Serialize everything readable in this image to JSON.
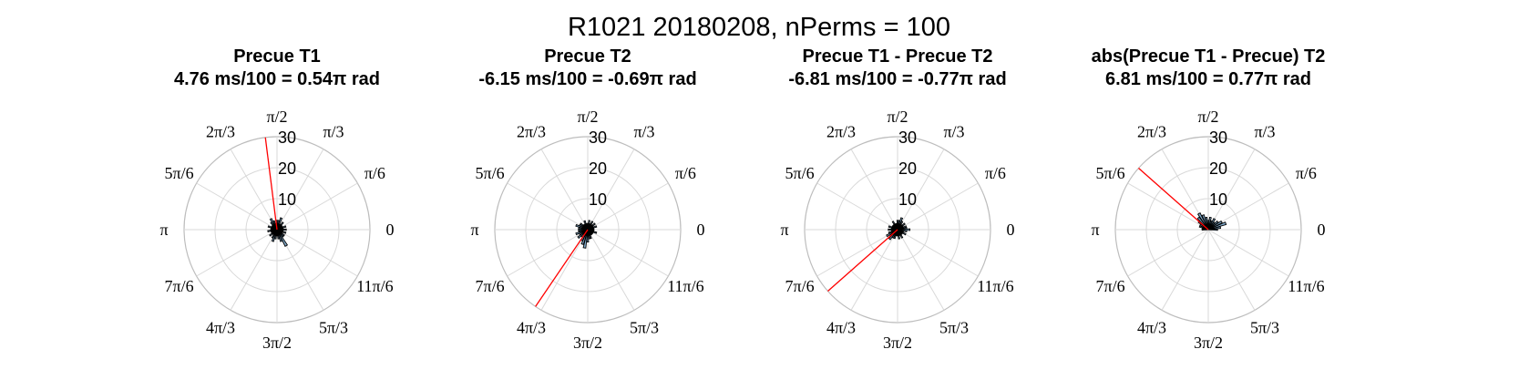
{
  "figure_title": "R1021 20180208, nPerms = 100",
  "chart_data": [
    {
      "type": "polar-histogram",
      "title": "Precue T1",
      "subtitle": "4.76 ms/100 = 0.54π rad",
      "rlim": [
        0,
        30
      ],
      "rticks": [
        "10",
        "20",
        "30"
      ],
      "theta_ticks": [
        "0",
        "π/6",
        "π/3",
        "π/2",
        "2π/3",
        "5π/6",
        "π",
        "7π/6",
        "4π/3",
        "3π/2",
        "5π/3",
        "11π/6"
      ],
      "grid": true,
      "mean_vector": {
        "angle_pi": 0.54,
        "radius": 30
      },
      "bars": [
        {
          "angle_deg": 0,
          "value": 3
        },
        {
          "angle_deg": 10,
          "value": 2
        },
        {
          "angle_deg": 20,
          "value": 3
        },
        {
          "angle_deg": 30,
          "value": 2
        },
        {
          "angle_deg": 40,
          "value": 2
        },
        {
          "angle_deg": 50,
          "value": 3
        },
        {
          "angle_deg": 60,
          "value": 2
        },
        {
          "angle_deg": 70,
          "value": 4
        },
        {
          "angle_deg": 80,
          "value": 3
        },
        {
          "angle_deg": 90,
          "value": 3
        },
        {
          "angle_deg": 100,
          "value": 2
        },
        {
          "angle_deg": 110,
          "value": 3
        },
        {
          "angle_deg": 120,
          "value": 4
        },
        {
          "angle_deg": 130,
          "value": 3
        },
        {
          "angle_deg": 140,
          "value": 2
        },
        {
          "angle_deg": 150,
          "value": 2
        },
        {
          "angle_deg": 160,
          "value": 3
        },
        {
          "angle_deg": 170,
          "value": 2
        },
        {
          "angle_deg": 180,
          "value": 2
        },
        {
          "angle_deg": 190,
          "value": 3
        },
        {
          "angle_deg": 200,
          "value": 2
        },
        {
          "angle_deg": 210,
          "value": 2
        },
        {
          "angle_deg": 220,
          "value": 3
        },
        {
          "angle_deg": 230,
          "value": 2
        },
        {
          "angle_deg": 240,
          "value": 3
        },
        {
          "angle_deg": 250,
          "value": 4
        },
        {
          "angle_deg": 260,
          "value": 3
        },
        {
          "angle_deg": 270,
          "value": 2
        },
        {
          "angle_deg": 280,
          "value": 3
        },
        {
          "angle_deg": 290,
          "value": 4
        },
        {
          "angle_deg": 300,
          "value": 6
        },
        {
          "angle_deg": 310,
          "value": 3
        },
        {
          "angle_deg": 320,
          "value": 3
        },
        {
          "angle_deg": 330,
          "value": 2
        },
        {
          "angle_deg": 340,
          "value": 3
        },
        {
          "angle_deg": 350,
          "value": 2
        }
      ]
    },
    {
      "type": "polar-histogram",
      "title": "Precue T2",
      "subtitle": "-6.15 ms/100 = -0.69π rad",
      "rlim": [
        0,
        30
      ],
      "rticks": [
        "10",
        "20",
        "30"
      ],
      "theta_ticks": [
        "0",
        "π/6",
        "π/3",
        "π/2",
        "2π/3",
        "5π/6",
        "π",
        "7π/6",
        "4π/3",
        "3π/2",
        "5π/3",
        "11π/6"
      ],
      "grid": true,
      "mean_vector": {
        "angle_pi": -0.69,
        "radius": 30
      },
      "bars": [
        {
          "angle_deg": 0,
          "value": 2
        },
        {
          "angle_deg": 10,
          "value": 2
        },
        {
          "angle_deg": 20,
          "value": 3
        },
        {
          "angle_deg": 30,
          "value": 2
        },
        {
          "angle_deg": 40,
          "value": 3
        },
        {
          "angle_deg": 50,
          "value": 2
        },
        {
          "angle_deg": 60,
          "value": 3
        },
        {
          "angle_deg": 70,
          "value": 2
        },
        {
          "angle_deg": 80,
          "value": 3
        },
        {
          "angle_deg": 90,
          "value": 2
        },
        {
          "angle_deg": 100,
          "value": 2
        },
        {
          "angle_deg": 110,
          "value": 3
        },
        {
          "angle_deg": 120,
          "value": 2
        },
        {
          "angle_deg": 130,
          "value": 2
        },
        {
          "angle_deg": 140,
          "value": 3
        },
        {
          "angle_deg": 150,
          "value": 3
        },
        {
          "angle_deg": 160,
          "value": 4
        },
        {
          "angle_deg": 170,
          "value": 3
        },
        {
          "angle_deg": 180,
          "value": 3
        },
        {
          "angle_deg": 190,
          "value": 3
        },
        {
          "angle_deg": 200,
          "value": 4
        },
        {
          "angle_deg": 210,
          "value": 3
        },
        {
          "angle_deg": 220,
          "value": 4
        },
        {
          "angle_deg": 230,
          "value": 3
        },
        {
          "angle_deg": 240,
          "value": 4
        },
        {
          "angle_deg": 250,
          "value": 5
        },
        {
          "angle_deg": 260,
          "value": 6
        },
        {
          "angle_deg": 270,
          "value": 4
        },
        {
          "angle_deg": 280,
          "value": 3
        },
        {
          "angle_deg": 290,
          "value": 3
        },
        {
          "angle_deg": 300,
          "value": 2
        },
        {
          "angle_deg": 310,
          "value": 2
        },
        {
          "angle_deg": 320,
          "value": 2
        },
        {
          "angle_deg": 330,
          "value": 2
        },
        {
          "angle_deg": 340,
          "value": 3
        },
        {
          "angle_deg": 350,
          "value": 2
        }
      ]
    },
    {
      "type": "polar-histogram",
      "title": "Precue T1 - Precue T2",
      "subtitle": "-6.81 ms/100 = -0.77π rad",
      "rlim": [
        0,
        30
      ],
      "rticks": [
        "10",
        "20",
        "30"
      ],
      "theta_ticks": [
        "0",
        "π/6",
        "π/3",
        "π/2",
        "2π/3",
        "5π/6",
        "π",
        "7π/6",
        "4π/3",
        "3π/2",
        "5π/3",
        "11π/6"
      ],
      "grid": true,
      "mean_vector": {
        "angle_pi": -0.77,
        "radius": 30
      },
      "bars": [
        {
          "angle_deg": 0,
          "value": 4
        },
        {
          "angle_deg": 10,
          "value": 3
        },
        {
          "angle_deg": 20,
          "value": 3
        },
        {
          "angle_deg": 30,
          "value": 2
        },
        {
          "angle_deg": 40,
          "value": 3
        },
        {
          "angle_deg": 50,
          "value": 2
        },
        {
          "angle_deg": 60,
          "value": 3
        },
        {
          "angle_deg": 70,
          "value": 4
        },
        {
          "angle_deg": 80,
          "value": 3
        },
        {
          "angle_deg": 90,
          "value": 3
        },
        {
          "angle_deg": 100,
          "value": 2
        },
        {
          "angle_deg": 110,
          "value": 2
        },
        {
          "angle_deg": 120,
          "value": 3
        },
        {
          "angle_deg": 130,
          "value": 2
        },
        {
          "angle_deg": 140,
          "value": 2
        },
        {
          "angle_deg": 150,
          "value": 2
        },
        {
          "angle_deg": 160,
          "value": 3
        },
        {
          "angle_deg": 170,
          "value": 2
        },
        {
          "angle_deg": 180,
          "value": 3
        },
        {
          "angle_deg": 190,
          "value": 2
        },
        {
          "angle_deg": 200,
          "value": 3
        },
        {
          "angle_deg": 210,
          "value": 4
        },
        {
          "angle_deg": 220,
          "value": 3
        },
        {
          "angle_deg": 230,
          "value": 4
        },
        {
          "angle_deg": 240,
          "value": 3
        },
        {
          "angle_deg": 250,
          "value": 3
        },
        {
          "angle_deg": 260,
          "value": 2
        },
        {
          "angle_deg": 270,
          "value": 2
        },
        {
          "angle_deg": 280,
          "value": 3
        },
        {
          "angle_deg": 290,
          "value": 2
        },
        {
          "angle_deg": 300,
          "value": 3
        },
        {
          "angle_deg": 310,
          "value": 2
        },
        {
          "angle_deg": 320,
          "value": 2
        },
        {
          "angle_deg": 330,
          "value": 3
        },
        {
          "angle_deg": 340,
          "value": 2
        },
        {
          "angle_deg": 350,
          "value": 3
        }
      ]
    },
    {
      "type": "polar-histogram",
      "title": "abs(Precue T1 - Precue) T2",
      "subtitle": "6.81 ms/100 = 0.77π rad",
      "rlim": [
        0,
        30
      ],
      "rticks": [
        "10",
        "20",
        "30"
      ],
      "theta_ticks": [
        "0",
        "π/6",
        "π/3",
        "π/2",
        "2π/3",
        "5π/6",
        "π",
        "7π/6",
        "4π/3",
        "3π/2",
        "5π/3",
        "11π/6"
      ],
      "grid": true,
      "mean_vector": {
        "angle_pi": 0.77,
        "radius": 30
      },
      "bars": [
        {
          "angle_deg": 0,
          "value": 3
        },
        {
          "angle_deg": 10,
          "value": 4
        },
        {
          "angle_deg": 20,
          "value": 6
        },
        {
          "angle_deg": 30,
          "value": 5
        },
        {
          "angle_deg": 40,
          "value": 4
        },
        {
          "angle_deg": 50,
          "value": 3
        },
        {
          "angle_deg": 60,
          "value": 4
        },
        {
          "angle_deg": 70,
          "value": 3
        },
        {
          "angle_deg": 80,
          "value": 4
        },
        {
          "angle_deg": 90,
          "value": 3
        },
        {
          "angle_deg": 100,
          "value": 4
        },
        {
          "angle_deg": 110,
          "value": 5
        },
        {
          "angle_deg": 120,
          "value": 6
        },
        {
          "angle_deg": 130,
          "value": 5
        },
        {
          "angle_deg": 140,
          "value": 4
        },
        {
          "angle_deg": 150,
          "value": 3
        },
        {
          "angle_deg": 160,
          "value": 3
        },
        {
          "angle_deg": 170,
          "value": 2
        },
        {
          "angle_deg": 180,
          "value": 2
        }
      ]
    }
  ],
  "colors": {
    "bar_fill": "#7fa8c9",
    "bar_edge": "#000000",
    "grid": "#d9d9d9",
    "outer_ring": "#bdbdbd",
    "mean_vector": "#ff0000",
    "text": "#000000"
  }
}
